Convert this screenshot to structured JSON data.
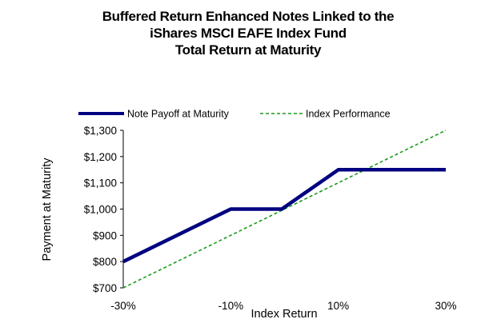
{
  "chart_data": {
    "type": "line",
    "title_lines": [
      "Buffered Return Enhanced Notes Linked to the",
      "iShares MSCI EAFE Index Fund",
      "Total Return at Maturity"
    ],
    "xlabel": "Index Return",
    "ylabel": "Payment at Maturity",
    "xlim": [
      -30,
      30
    ],
    "ylim": [
      700,
      1300
    ],
    "x_ticks": [
      -30,
      -10,
      10,
      30
    ],
    "x_tick_labels": [
      "-30%",
      "-10%",
      "10%",
      "30%"
    ],
    "y_ticks": [
      700,
      800,
      900,
      1000,
      1100,
      1200,
      1300
    ],
    "y_tick_labels": [
      "$700",
      "$800",
      "$900",
      "$1,000",
      "$1,100",
      "$1,200",
      "$1,300"
    ],
    "grid": false,
    "legend_position": "top",
    "series": [
      {
        "name": "Note Payoff at Maturity",
        "color": "#000080",
        "style": "solid-thick",
        "x": [
          -30,
          -10,
          -0.5,
          10,
          30
        ],
        "y": [
          800,
          1000,
          1000,
          1150,
          1150
        ]
      },
      {
        "name": "Index Performance",
        "color": "#1a9a1a",
        "style": "dashed",
        "x": [
          -30,
          30
        ],
        "y": [
          700,
          1300
        ]
      }
    ]
  }
}
